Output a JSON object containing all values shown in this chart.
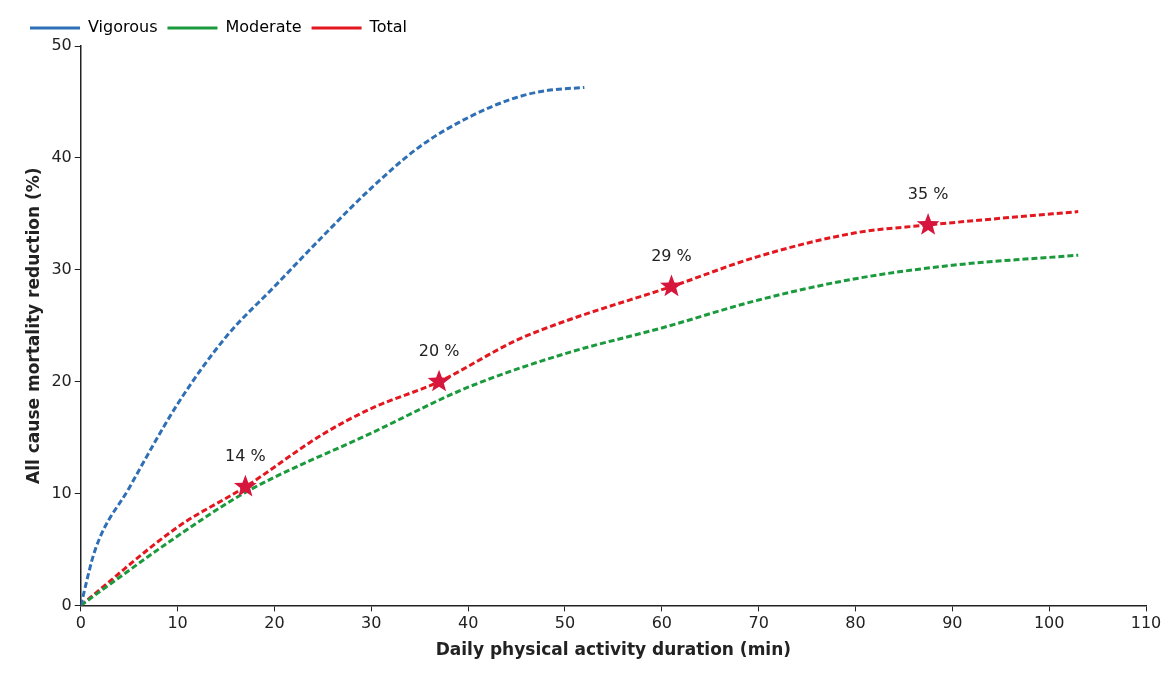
{
  "chart_data": {
    "type": "line",
    "xlabel": "Daily physical activity duration (min)",
    "ylabel": "All cause mortality reduction (%)",
    "xlim": [
      0,
      110
    ],
    "xticks": [
      0,
      10,
      20,
      30,
      40,
      50,
      60,
      70,
      80,
      90,
      100,
      110
    ],
    "ylim": [
      0,
      50
    ],
    "yticks": [
      0,
      10,
      20,
      30,
      40,
      50
    ],
    "grid": false,
    "legend": "top left",
    "line_style": "dashed",
    "marker": "none",
    "series": [
      {
        "name": "Vigorous",
        "color": "#2f6fb5",
        "x": [
          0,
          1.5,
          5,
          10,
          15,
          20,
          25,
          30,
          35,
          40,
          45,
          48,
          52
        ],
        "values": [
          0,
          5,
          10.5,
          18,
          24,
          28.5,
          33,
          37.3,
          41,
          43.6,
          45.4,
          46,
          46.3
        ]
      },
      {
        "name": "Moderate",
        "color": "#1a9a3c",
        "x": [
          0,
          10,
          17,
          30,
          40,
          50,
          60,
          70,
          80,
          90,
          103
        ],
        "values": [
          0,
          6.2,
          10.1,
          15.4,
          19.5,
          22.5,
          24.8,
          27.3,
          29.2,
          30.4,
          31.3
        ]
      },
      {
        "name": "Total",
        "color": "#e3171f",
        "x": [
          0,
          10,
          17,
          25,
          30,
          37,
          45,
          50,
          61,
          70,
          80,
          87.5,
          95,
          103
        ],
        "values": [
          0,
          7,
          10.6,
          15.3,
          17.6,
          20,
          23.7,
          25.4,
          28.5,
          31.2,
          33.3,
          34,
          34.6,
          35.2
        ]
      },
      {
        "type": "scatter",
        "marker": "star",
        "color": "#d6163c",
        "x": [
          17,
          37,
          61,
          87.5
        ],
        "values": [
          10.6,
          20,
          28.5,
          34
        ]
      }
    ],
    "annotations": [
      {
        "text": "14 %",
        "x": 17,
        "y": 10.6
      },
      {
        "text": "20 %",
        "x": 37,
        "y": 20
      },
      {
        "text": "29 %",
        "x": 61,
        "y": 28.5
      },
      {
        "text": "35 %",
        "x": 87.5,
        "y": 34
      }
    ]
  }
}
